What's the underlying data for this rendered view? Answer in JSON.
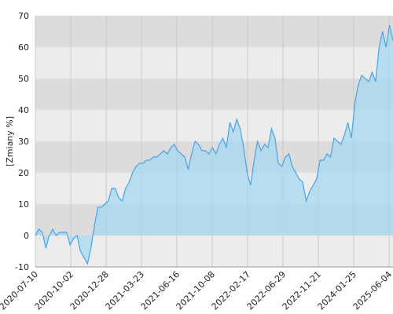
{
  "chart_data": {
    "type": "area",
    "y_label": "[Zmiany %]",
    "x_labels": [
      "2020-07-10",
      "2020-10-02",
      "2020-12-28",
      "2021-03-23",
      "2021-06-16",
      "2021-10-08",
      "2022-02-17",
      "2022-06-29",
      "2022-11-21",
      "2024-01-25",
      "2025-06-04"
    ],
    "series": [
      {
        "color": "#4aa3e8",
        "fill": "#a6d8ef",
        "values": [
          0,
          2,
          1,
          -4,
          0,
          2,
          0,
          1,
          1,
          1,
          -3,
          -1,
          0,
          -5,
          -7,
          -9,
          -4,
          3,
          9,
          9,
          10,
          11,
          15,
          15,
          12,
          11,
          15,
          17,
          20,
          22,
          23,
          23,
          24,
          24,
          25,
          25,
          26,
          27,
          26,
          28,
          29,
          27,
          26,
          25,
          21,
          26,
          30,
          29,
          27,
          27,
          26,
          28,
          26,
          29,
          31,
          28,
          36,
          33,
          37,
          34,
          28,
          20,
          16,
          24,
          30,
          27,
          29,
          28,
          34,
          31,
          23,
          22,
          25,
          26,
          22,
          20,
          18,
          17,
          11,
          14,
          16,
          18,
          24,
          24,
          26,
          25,
          31,
          30,
          29,
          32,
          36,
          31,
          42,
          48,
          51,
          50,
          49,
          52,
          49,
          60,
          65,
          60,
          67,
          62
        ]
      }
    ],
    "ylim": [
      -10,
      70
    ],
    "yticks": [
      -10,
      0,
      10,
      20,
      30,
      40,
      50,
      60,
      70
    ],
    "grid": true
  }
}
